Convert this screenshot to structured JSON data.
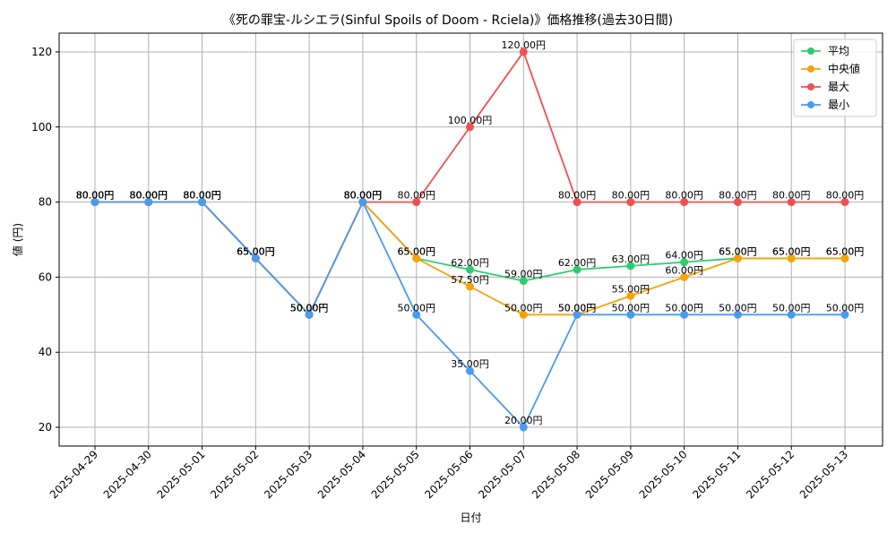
{
  "chart_data": {
    "type": "line",
    "title": "《死の罪宝-ルシエラ(Sinful Spoils of Doom - Rciela)》価格推移(過去30日間)",
    "xlabel": "日付",
    "ylabel": "値 (円)",
    "categories": [
      "2025-04-29",
      "2025-04-30",
      "2025-05-01",
      "2025-05-02",
      "2025-05-03",
      "2025-05-04",
      "2025-05-05",
      "2025-05-06",
      "2025-05-07",
      "2025-05-08",
      "2025-05-09",
      "2025-05-10",
      "2025-05-11",
      "2025-05-12",
      "2025-05-13"
    ],
    "ylim": [
      15,
      125
    ],
    "yticks": [
      20,
      40,
      60,
      80,
      100,
      120
    ],
    "grid": true,
    "legend_position": "top-right",
    "value_suffix": "円",
    "series": [
      {
        "name": "平均",
        "color": "#2ecc71",
        "values": [
          80,
          80,
          80,
          65,
          50,
          80,
          65,
          62,
          59,
          62,
          63,
          64,
          65,
          65,
          65
        ]
      },
      {
        "name": "中央値",
        "color": "#f5a30a",
        "values": [
          80,
          80,
          80,
          65,
          50,
          80,
          65,
          57.5,
          50,
          50,
          55,
          60,
          65,
          65,
          65
        ]
      },
      {
        "name": "最大",
        "color": "#f0504f",
        "values": [
          80,
          80,
          80,
          65,
          50,
          80,
          80,
          100,
          120,
          80,
          80,
          80,
          80,
          80,
          80
        ]
      },
      {
        "name": "最小",
        "color": "#4a9af0",
        "values": [
          80,
          80,
          80,
          65,
          50,
          80,
          50,
          35,
          20,
          50,
          50,
          50,
          50,
          50,
          50
        ]
      }
    ]
  }
}
